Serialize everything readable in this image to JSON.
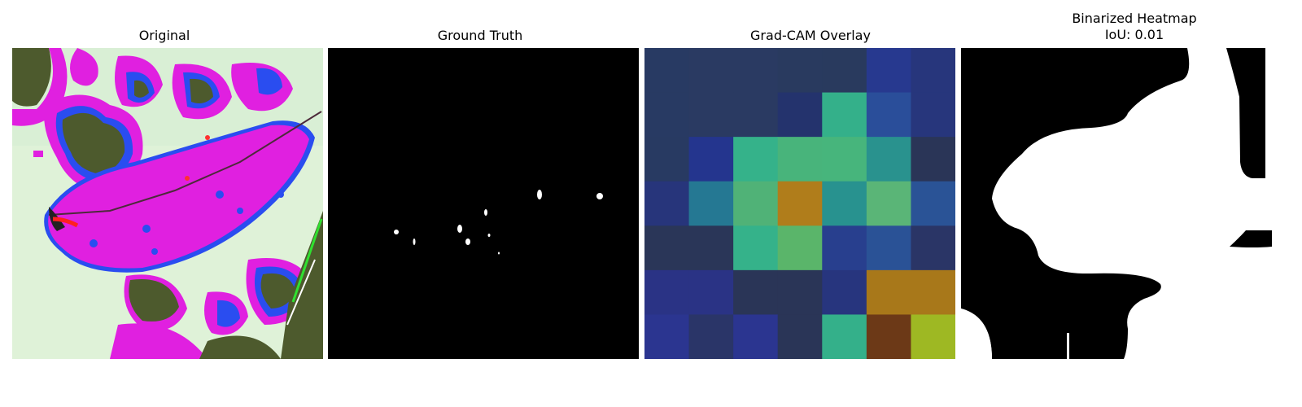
{
  "panels": [
    {
      "title": "Original"
    },
    {
      "title": "Ground Truth"
    },
    {
      "title": "Grad-CAM Overlay"
    },
    {
      "title_line1": "Binarized Heatmap",
      "title_line2": "IoU: 0.01"
    }
  ],
  "colors": {
    "background": "#ffffff",
    "leaf_magenta": "#e020e0",
    "pale_green_bg": "#dff2d8",
    "blob_blue": "#2a4df0",
    "dark_olive": "#4d5a2d",
    "mask_black": "#000000",
    "mask_white": "#ffffff"
  },
  "gradcam_grid": [
    [
      "#283a63",
      "#2a3a62",
      "#2a3a62",
      "#293a5f",
      "#293a5e",
      "#27398f",
      "#27367c"
    ],
    [
      "#283a63",
      "#2a3a62",
      "#2a3a62",
      "#24336d",
      "#34b08a",
      "#2a4e9a",
      "#27367c"
    ],
    [
      "#283a62",
      "#24358e",
      "#35b28a",
      "#48b47b",
      "#47b57c",
      "#29928e",
      "#2a3557"
    ],
    [
      "#27357b",
      "#257893",
      "#50b277",
      "#b07d1b",
      "#28928f",
      "#5ab577",
      "#2a5396"
    ],
    [
      "#2a3658",
      "#2a3658",
      "#35b28a",
      "#5ab56a",
      "#283f8e",
      "#2a5296",
      "#2a3566"
    ],
    [
      "#2a3385",
      "#2a3385",
      "#2a3557",
      "#2a3557",
      "#27357e",
      "#a8781a",
      "#a8781a"
    ],
    [
      "#2b3590",
      "#2a3568",
      "#2b3590",
      "#2a3557",
      "#34b08a",
      "#6c3917",
      "#9eb823"
    ]
  ]
}
